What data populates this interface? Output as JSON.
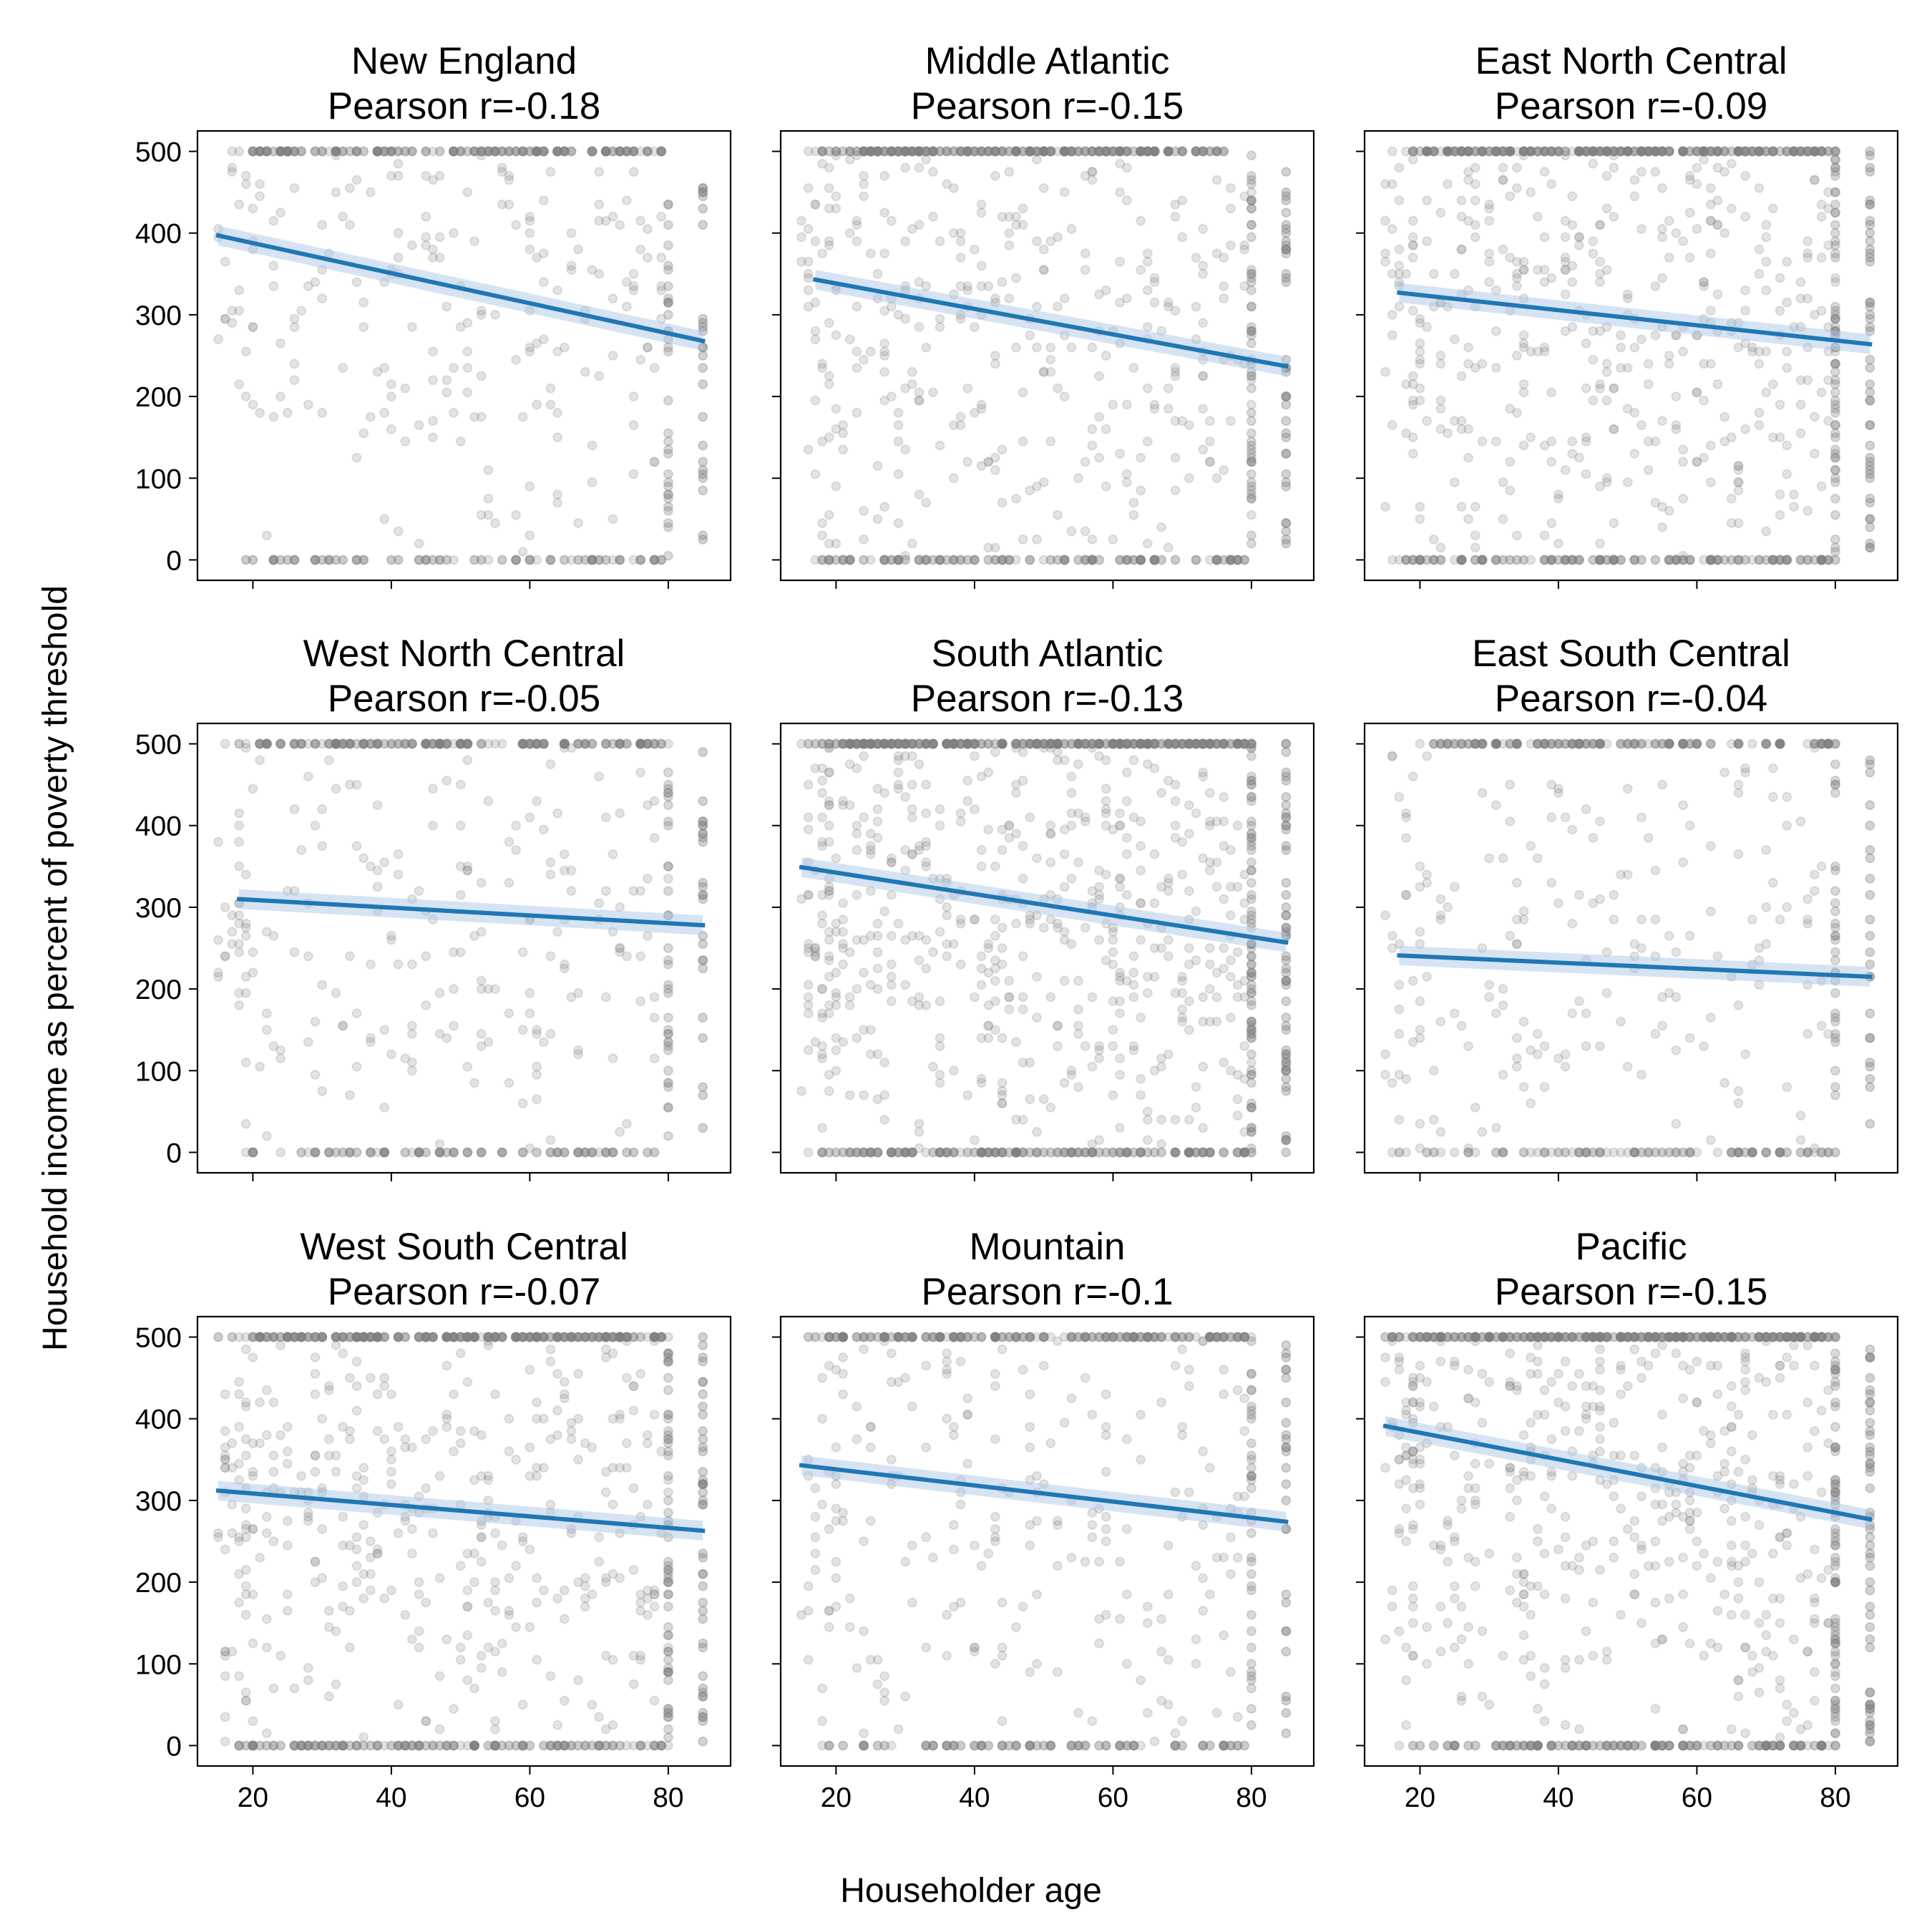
{
  "chart_data": {
    "type": "scatter",
    "layout": "3x3 small multiples, shared axes",
    "xlabel": "Householder age",
    "ylabel": "Household income as percent of poverty threshold",
    "xlim": [
      12,
      89
    ],
    "ylim": [
      -25,
      525
    ],
    "xticks": [
      20,
      40,
      60,
      80
    ],
    "yticks": [
      0,
      100,
      200,
      300,
      400,
      500
    ],
    "grid": false,
    "colors": {
      "points": "#808080",
      "regression_line": "#1f77b4",
      "confidence_band": "#aec7e8"
    },
    "point_notes": {
      "age_range": [
        15,
        85
      ],
      "income_range": [
        0,
        500
      ],
      "ceiling_value": 500,
      "age_topcode_value": 85
    },
    "panels": [
      {
        "region": "New England",
        "title_line1": "New England",
        "title_line2": "Pearson r=-0.18",
        "pearson_r": -0.18,
        "fit": {
          "x": [
            15,
            85
          ],
          "y": [
            397,
            268
          ]
        },
        "density": 0.55
      },
      {
        "region": "Middle Atlantic",
        "title_line1": "Middle Atlantic",
        "title_line2": "Pearson r=-0.15",
        "pearson_r": -0.15,
        "fit": {
          "x": [
            17,
            85
          ],
          "y": [
            343,
            237
          ]
        },
        "density": 0.85
      },
      {
        "region": "East North Central",
        "title_line1": "East North Central",
        "title_line2": "Pearson r=-0.09",
        "pearson_r": -0.09,
        "fit": {
          "x": [
            17,
            85
          ],
          "y": [
            327,
            264
          ]
        },
        "density": 1.0
      },
      {
        "region": "West North Central",
        "title_line1": "West North Central",
        "title_line2": "Pearson r=-0.05",
        "pearson_r": -0.05,
        "fit": {
          "x": [
            18,
            85
          ],
          "y": [
            310,
            278
          ]
        },
        "density": 0.55
      },
      {
        "region": "South Atlantic",
        "title_line1": "South Atlantic",
        "title_line2": "Pearson r=-0.13",
        "pearson_r": -0.13,
        "fit": {
          "x": [
            15,
            85
          ],
          "y": [
            349,
            257
          ]
        },
        "density": 1.25
      },
      {
        "region": "East South Central",
        "title_line1": "East South Central",
        "title_line2": "Pearson r=-0.04",
        "pearson_r": -0.04,
        "fit": {
          "x": [
            17,
            85
          ],
          "y": [
            241,
            215
          ]
        },
        "density": 0.5
      },
      {
        "region": "West South Central",
        "title_line1": "West South Central",
        "title_line2": "Pearson r=-0.07",
        "pearson_r": -0.07,
        "fit": {
          "x": [
            15,
            85
          ],
          "y": [
            312,
            263
          ]
        },
        "density": 0.95
      },
      {
        "region": "Mountain",
        "title_line1": "Mountain",
        "title_line2": "Pearson r=-0.1",
        "pearson_r": -0.1,
        "fit": {
          "x": [
            15,
            85
          ],
          "y": [
            343,
            274
          ]
        },
        "density": 0.6
      },
      {
        "region": "Pacific",
        "title_line1": "Pacific",
        "title_line2": "Pearson r=-0.15",
        "pearson_r": -0.15,
        "fit": {
          "x": [
            15,
            85
          ],
          "y": [
            391,
            277
          ]
        },
        "density": 1.15
      }
    ]
  }
}
